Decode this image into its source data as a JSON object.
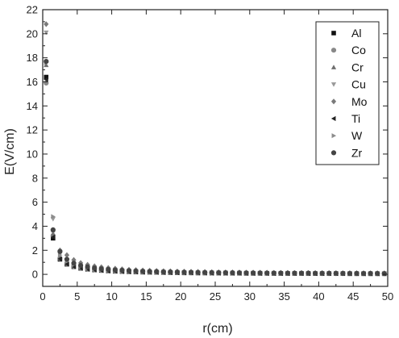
{
  "chart_data": {
    "type": "scatter",
    "title": "",
    "xlabel": "r(cm)",
    "ylabel": "E(V/cm)",
    "xlim": [
      0,
      50
    ],
    "ylim": [
      -1,
      22
    ],
    "x_ticks": [
      0,
      5,
      10,
      15,
      20,
      25,
      30,
      35,
      40,
      45,
      50
    ],
    "y_ticks": [
      0,
      2,
      4,
      6,
      8,
      10,
      12,
      14,
      16,
      18,
      20,
      22
    ],
    "grid": false,
    "legend_position": "top-right",
    "x": [
      0.5,
      1.5,
      2.5,
      3.5,
      4.5,
      5.5,
      6.5,
      7.5,
      8.5,
      9.5,
      10.5,
      11.5,
      12.5,
      13.5,
      14.5,
      15.5,
      16.5,
      17.5,
      18.5,
      19.5,
      20.5,
      21.5,
      22.5,
      23.5,
      24.5,
      25.5,
      26.5,
      27.5,
      28.5,
      29.5,
      30.5,
      31.5,
      32.5,
      33.5,
      34.5,
      35.5,
      36.5,
      37.5,
      38.5,
      39.5,
      40.5,
      41.5,
      42.5,
      43.5,
      44.5,
      45.5,
      46.5,
      47.5,
      48.5,
      49.5
    ],
    "series": [
      {
        "name": "Al",
        "marker": "square",
        "color": "#111111",
        "values": [
          16.4,
          3.0,
          1.25,
          0.84,
          0.63,
          0.5,
          0.42,
          0.36,
          0.32,
          0.28,
          0.25,
          0.23,
          0.21,
          0.19,
          0.18,
          0.17,
          0.16,
          0.15,
          0.14,
          0.13,
          0.12,
          0.12,
          0.11,
          0.11,
          0.1,
          0.1,
          0.09,
          0.09,
          0.09,
          0.08,
          0.08,
          0.08,
          0.08,
          0.07,
          0.07,
          0.07,
          0.07,
          0.07,
          0.06,
          0.06,
          0.06,
          0.06,
          0.06,
          0.06,
          0.05,
          0.05,
          0.05,
          0.05,
          0.05,
          0.05
        ]
      },
      {
        "name": "Co",
        "marker": "circle",
        "color": "#888888",
        "values": [
          15.9,
          3.2,
          1.32,
          0.89,
          0.66,
          0.53,
          0.44,
          0.38,
          0.33,
          0.29,
          0.26,
          0.24,
          0.22,
          0.2,
          0.19,
          0.17,
          0.16,
          0.15,
          0.14,
          0.14,
          0.13,
          0.12,
          0.12,
          0.11,
          0.11,
          0.1,
          0.1,
          0.1,
          0.09,
          0.09,
          0.09,
          0.08,
          0.08,
          0.08,
          0.08,
          0.07,
          0.07,
          0.07,
          0.07,
          0.07,
          0.06,
          0.06,
          0.06,
          0.06,
          0.06,
          0.06,
          0.06,
          0.05,
          0.05,
          0.05
        ]
      },
      {
        "name": "Cr",
        "marker": "triangle-up",
        "color": "#6e6e6e",
        "values": [
          17.4,
          3.4,
          1.42,
          0.95,
          0.71,
          0.57,
          0.47,
          0.4,
          0.35,
          0.31,
          0.28,
          0.26,
          0.23,
          0.22,
          0.2,
          0.19,
          0.17,
          0.16,
          0.15,
          0.15,
          0.14,
          0.13,
          0.13,
          0.12,
          0.12,
          0.11,
          0.11,
          0.1,
          0.1,
          0.1,
          0.09,
          0.09,
          0.09,
          0.08,
          0.08,
          0.08,
          0.08,
          0.08,
          0.07,
          0.07,
          0.07,
          0.07,
          0.07,
          0.06,
          0.06,
          0.06,
          0.06,
          0.06,
          0.06,
          0.06
        ]
      },
      {
        "name": "Cu",
        "marker": "triangle-down",
        "color": "#999999",
        "values": [
          20.1,
          4.6,
          1.7,
          1.14,
          0.85,
          0.68,
          0.57,
          0.49,
          0.42,
          0.38,
          0.34,
          0.31,
          0.28,
          0.26,
          0.24,
          0.22,
          0.21,
          0.2,
          0.18,
          0.17,
          0.17,
          0.16,
          0.15,
          0.14,
          0.14,
          0.13,
          0.13,
          0.12,
          0.12,
          0.11,
          0.11,
          0.11,
          0.1,
          0.1,
          0.1,
          0.09,
          0.09,
          0.09,
          0.09,
          0.08,
          0.08,
          0.08,
          0.08,
          0.08,
          0.07,
          0.07,
          0.07,
          0.07,
          0.07,
          0.07
        ]
      },
      {
        "name": "Mo",
        "marker": "diamond",
        "color": "#7a7a7a",
        "values": [
          20.8,
          3.6,
          2.0,
          1.6,
          1.2,
          0.95,
          0.8,
          0.68,
          0.6,
          0.53,
          0.48,
          0.43,
          0.39,
          0.36,
          0.33,
          0.31,
          0.29,
          0.27,
          0.26,
          0.24,
          0.23,
          0.22,
          0.21,
          0.2,
          0.19,
          0.18,
          0.17,
          0.17,
          0.16,
          0.15,
          0.15,
          0.14,
          0.14,
          0.13,
          0.13,
          0.13,
          0.12,
          0.12,
          0.12,
          0.11,
          0.11,
          0.11,
          0.1,
          0.1,
          0.1,
          0.1,
          0.09,
          0.09,
          0.09,
          0.09
        ]
      },
      {
        "name": "Ti",
        "marker": "triangle-left",
        "color": "#222222",
        "values": [
          16.2,
          3.1,
          1.28,
          0.86,
          0.64,
          0.51,
          0.43,
          0.37,
          0.32,
          0.28,
          0.26,
          0.23,
          0.21,
          0.2,
          0.18,
          0.17,
          0.16,
          0.15,
          0.14,
          0.13,
          0.12,
          0.12,
          0.11,
          0.11,
          0.1,
          0.1,
          0.1,
          0.09,
          0.09,
          0.09,
          0.08,
          0.08,
          0.08,
          0.08,
          0.07,
          0.07,
          0.07,
          0.07,
          0.07,
          0.06,
          0.06,
          0.06,
          0.06,
          0.06,
          0.06,
          0.06,
          0.05,
          0.05,
          0.05,
          0.05
        ]
      },
      {
        "name": "W",
        "marker": "triangle-right",
        "color": "#8c8c8c",
        "values": [
          17.6,
          4.8,
          1.6,
          1.07,
          0.8,
          0.64,
          0.53,
          0.46,
          0.4,
          0.36,
          0.32,
          0.29,
          0.27,
          0.25,
          0.23,
          0.21,
          0.2,
          0.19,
          0.17,
          0.16,
          0.16,
          0.15,
          0.14,
          0.14,
          0.13,
          0.13,
          0.12,
          0.12,
          0.11,
          0.11,
          0.11,
          0.1,
          0.1,
          0.1,
          0.09,
          0.09,
          0.09,
          0.09,
          0.08,
          0.08,
          0.08,
          0.08,
          0.08,
          0.07,
          0.07,
          0.07,
          0.07,
          0.07,
          0.07,
          0.06
        ]
      },
      {
        "name": "Zr",
        "marker": "circle",
        "color": "#444444",
        "values": [
          17.7,
          3.7,
          1.9,
          1.25,
          0.93,
          0.74,
          0.62,
          0.53,
          0.46,
          0.41,
          0.37,
          0.34,
          0.31,
          0.28,
          0.26,
          0.24,
          0.23,
          0.21,
          0.2,
          0.19,
          0.18,
          0.17,
          0.16,
          0.16,
          0.15,
          0.14,
          0.14,
          0.13,
          0.13,
          0.12,
          0.12,
          0.12,
          0.11,
          0.11,
          0.11,
          0.1,
          0.1,
          0.1,
          0.1,
          0.09,
          0.09,
          0.09,
          0.09,
          0.08,
          0.08,
          0.08,
          0.08,
          0.08,
          0.08,
          0.07
        ]
      }
    ]
  }
}
